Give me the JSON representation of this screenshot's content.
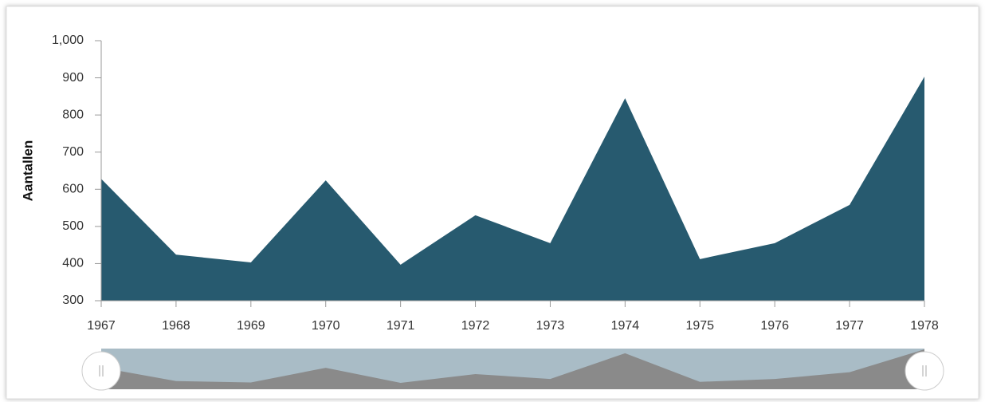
{
  "chart_data": {
    "type": "area",
    "y_label": "Aantallen",
    "x": [
      1967,
      1968,
      1969,
      1970,
      1971,
      1972,
      1973,
      1974,
      1975,
      1976,
      1977,
      1978
    ],
    "xlim": [
      1967,
      1978
    ],
    "xticks": [
      1967,
      1968,
      1969,
      1970,
      1971,
      1972,
      1973,
      1974,
      1975,
      1976,
      1977,
      1978
    ],
    "series": [
      {
        "color": "#275a6f",
        "values": [
          628,
          424,
          403,
          624,
          397,
          530,
          455,
          845,
          412,
          455,
          558,
          903
        ]
      }
    ],
    "ylim": [
      300,
      1000
    ],
    "yticks": [
      300,
      400,
      500,
      600,
      700,
      800,
      900,
      {
        "value": 1000,
        "label": "1,000"
      }
    ],
    "navigator": true,
    "navigator_color": "#8a8a8a",
    "navigator_background": "#a9bcc6"
  }
}
